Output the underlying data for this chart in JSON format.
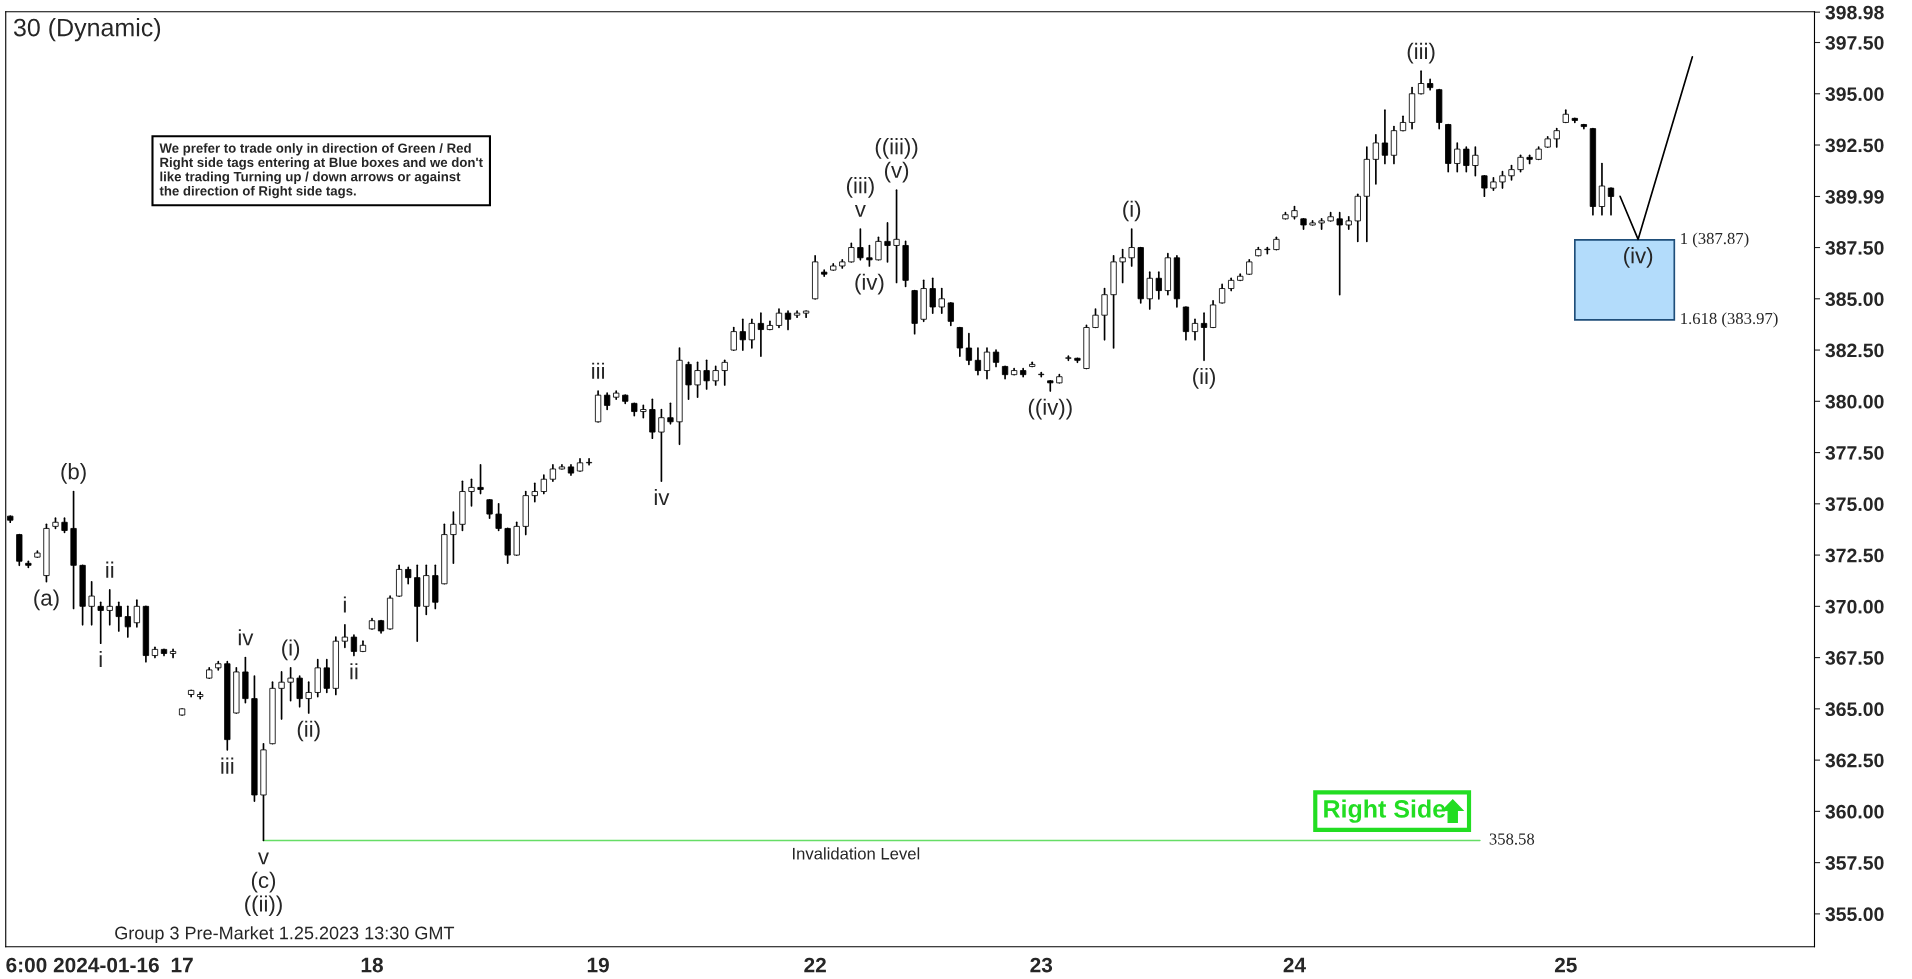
{
  "chart_data": {
    "type": "candlestick",
    "title": "30 (Dynamic)",
    "categories": [
      null,
      null,
      null,
      null,
      null,
      null,
      null,
      null,
      "6:00 2024-01-16",
      null,
      null,
      null,
      null,
      null,
      null,
      null,
      null,
      null,
      null,
      "17",
      null,
      null,
      null,
      null,
      null,
      null,
      null,
      null,
      null,
      null,
      null,
      null,
      null,
      null,
      null,
      null,
      null,
      null,
      null,
      null,
      "18",
      null,
      null,
      null,
      null,
      null,
      null,
      null,
      null,
      null,
      null,
      null,
      null,
      null,
      null,
      null,
      null,
      null,
      null,
      null,
      null,
      null,
      null,
      null,
      null,
      "19",
      null,
      null,
      null,
      null,
      null,
      null,
      null,
      null,
      null,
      null,
      null,
      null,
      null,
      null,
      null,
      null,
      null,
      null,
      null,
      null,
      null,
      null,
      null,
      "22",
      null,
      null,
      null,
      null,
      null,
      null,
      null,
      null,
      null,
      null,
      null,
      null,
      null,
      null,
      null,
      null,
      null,
      null,
      null,
      null,
      null,
      null,
      null,
      null,
      "23",
      null,
      null,
      null,
      null,
      null,
      null,
      null,
      null,
      null,
      null,
      null,
      null,
      null,
      null,
      null,
      null,
      null,
      null,
      null,
      null,
      null,
      null,
      null,
      null,
      null,
      null,
      null,
      "24",
      null,
      null,
      null,
      null,
      null,
      null,
      null,
      null,
      null,
      null,
      null,
      null,
      null,
      null,
      null,
      null,
      null,
      null,
      null,
      null,
      null,
      null,
      null,
      null,
      null,
      null,
      null,
      null,
      null,
      "25",
      null,
      null,
      null,
      null,
      null,
      null,
      null,
      null,
      null,
      null,
      null,
      null,
      null,
      null,
      null,
      null,
      null,
      null,
      null,
      null,
      null,
      null,
      null,
      null,
      null,
      null,
      null
    ],
    "ohlc": [
      [
        374.4,
        374.4,
        374.1,
        374.2
      ],
      [
        373.5,
        373.5,
        372.0,
        372.2
      ],
      [
        372.1,
        372.2,
        371.9,
        372.0
      ],
      [
        372.4,
        372.7,
        372.4,
        372.6
      ],
      [
        371.5,
        374.0,
        371.2,
        373.8
      ],
      [
        373.9,
        374.3,
        373.8,
        374.1
      ],
      [
        374.1,
        374.3,
        373.6,
        373.7
      ],
      [
        373.8,
        375.6,
        369.9,
        372.0
      ],
      [
        372.0,
        372.0,
        369.1,
        370.0
      ],
      [
        370.0,
        371.2,
        369.1,
        370.5
      ],
      [
        370.0,
        370.2,
        368.2,
        369.8
      ],
      [
        369.8,
        370.8,
        369.1,
        370.0
      ],
      [
        370.0,
        370.2,
        368.8,
        369.5
      ],
      [
        369.5,
        370.0,
        368.5,
        369.0
      ],
      [
        369.2,
        370.3,
        369.0,
        370.0
      ],
      [
        370.0,
        370.0,
        367.3,
        367.6
      ],
      [
        367.6,
        368.0,
        367.5,
        367.9
      ],
      [
        367.9,
        367.9,
        367.6,
        367.7
      ],
      [
        367.7,
        367.9,
        367.5,
        367.8
      ],
      [
        364.7,
        365.0,
        364.7,
        365.0
      ],
      [
        365.7,
        365.9,
        365.6,
        365.9
      ],
      [
        365.6,
        365.8,
        365.5,
        365.7
      ],
      [
        366.5,
        367.0,
        366.5,
        366.9
      ],
      [
        367.0,
        367.3,
        366.9,
        367.2
      ],
      [
        367.2,
        367.3,
        363.0,
        363.5
      ],
      [
        364.8,
        367.0,
        364.8,
        366.8
      ],
      [
        366.8,
        367.5,
        365.3,
        365.5
      ],
      [
        365.5,
        366.6,
        360.5,
        360.8
      ],
      [
        360.8,
        363.3,
        358.58,
        363.0
      ],
      [
        363.3,
        366.3,
        363.3,
        366.0
      ],
      [
        366.0,
        366.8,
        364.5,
        366.3
      ],
      [
        366.3,
        367.0,
        365.4,
        366.5
      ],
      [
        366.5,
        366.6,
        365.1,
        365.5
      ],
      [
        365.5,
        366.3,
        364.8,
        365.8
      ],
      [
        365.8,
        367.4,
        365.6,
        367.0
      ],
      [
        367.0,
        367.4,
        365.8,
        366.0
      ],
      [
        366.0,
        368.5,
        365.7,
        368.3
      ],
      [
        368.3,
        369.1,
        368.0,
        368.5
      ],
      [
        368.5,
        368.6,
        367.6,
        367.8
      ],
      [
        367.8,
        368.3,
        367.8,
        368.1
      ],
      [
        368.9,
        369.4,
        368.9,
        369.3
      ],
      [
        369.3,
        369.3,
        368.7,
        368.8
      ],
      [
        368.9,
        370.5,
        368.9,
        370.4
      ],
      [
        370.5,
        372.0,
        370.5,
        371.8
      ],
      [
        371.8,
        371.9,
        371.1,
        371.4
      ],
      [
        371.4,
        372.0,
        368.3,
        370.0
      ],
      [
        370.0,
        372.0,
        369.6,
        371.5
      ],
      [
        371.5,
        372.0,
        369.9,
        370.2
      ],
      [
        371.1,
        374.0,
        371.1,
        373.5
      ],
      [
        373.5,
        374.6,
        372.1,
        374.0
      ],
      [
        374.0,
        376.1,
        373.7,
        375.6
      ],
      [
        375.6,
        376.2,
        374.9,
        375.8
      ],
      [
        375.8,
        376.9,
        375.5,
        375.7
      ],
      [
        375.2,
        375.2,
        374.3,
        374.5
      ],
      [
        374.5,
        375.0,
        373.7,
        373.8
      ],
      [
        373.8,
        373.8,
        372.1,
        372.5
      ],
      [
        372.5,
        374.1,
        372.5,
        373.9
      ],
      [
        373.9,
        375.6,
        373.5,
        375.4
      ],
      [
        375.4,
        376.0,
        375.1,
        375.6
      ],
      [
        375.6,
        376.4,
        375.5,
        376.2
      ],
      [
        376.2,
        376.9,
        376.1,
        376.7
      ],
      [
        376.7,
        376.9,
        376.7,
        376.8
      ],
      [
        376.8,
        376.9,
        376.4,
        376.5
      ],
      [
        376.6,
        377.2,
        376.6,
        377.0
      ],
      [
        377.0,
        377.2,
        376.9,
        377.0
      ],
      [
        379.0,
        380.5,
        379.0,
        380.3
      ],
      [
        380.3,
        380.4,
        379.6,
        379.8
      ],
      [
        380.2,
        380.5,
        380.1,
        380.4
      ],
      [
        380.3,
        380.3,
        379.9,
        380.0
      ],
      [
        379.9,
        379.9,
        379.3,
        379.5
      ],
      [
        379.5,
        379.8,
        379.2,
        379.6
      ],
      [
        379.6,
        380.1,
        378.2,
        378.5
      ],
      [
        378.5,
        379.6,
        376.1,
        379.2
      ],
      [
        379.2,
        379.9,
        378.9,
        379.0
      ],
      [
        379.0,
        382.6,
        377.9,
        382.0
      ],
      [
        381.8,
        381.9,
        380.1,
        380.8
      ],
      [
        380.8,
        381.9,
        380.2,
        381.5
      ],
      [
        381.5,
        382.0,
        380.6,
        381.0
      ],
      [
        381.0,
        381.7,
        380.8,
        381.5
      ],
      [
        381.5,
        382.0,
        380.8,
        381.9
      ],
      [
        382.5,
        383.6,
        382.5,
        383.4
      ],
      [
        383.4,
        384.0,
        382.5,
        383.0
      ],
      [
        383.0,
        384.0,
        382.6,
        383.8
      ],
      [
        383.8,
        384.3,
        382.2,
        383.5
      ],
      [
        383.5,
        383.9,
        383.5,
        383.7
      ],
      [
        383.7,
        384.5,
        383.6,
        384.3
      ],
      [
        384.3,
        384.4,
        383.5,
        384.0
      ],
      [
        384.2,
        384.4,
        384.1,
        384.3
      ],
      [
        384.3,
        384.4,
        384.1,
        384.4
      ],
      [
        385.0,
        387.1,
        385.0,
        386.8
      ],
      [
        386.3,
        386.4,
        386.1,
        386.2
      ],
      [
        386.4,
        386.7,
        386.4,
        386.6
      ],
      [
        386.6,
        386.9,
        386.5,
        386.8
      ],
      [
        386.8,
        387.7,
        386.8,
        387.5
      ],
      [
        387.5,
        388.4,
        386.9,
        387.0
      ],
      [
        387.0,
        387.6,
        386.6,
        386.9
      ],
      [
        386.9,
        388.0,
        386.9,
        387.8
      ],
      [
        387.8,
        388.7,
        386.8,
        387.6
      ],
      [
        387.6,
        390.3,
        385.8,
        387.9
      ],
      [
        387.6,
        387.8,
        385.6,
        385.9
      ],
      [
        385.4,
        385.4,
        383.3,
        383.8
      ],
      [
        384.0,
        385.9,
        383.9,
        385.5
      ],
      [
        385.5,
        386.0,
        384.3,
        384.6
      ],
      [
        384.6,
        385.5,
        384.3,
        385.0
      ],
      [
        384.8,
        384.8,
        383.7,
        383.9
      ],
      [
        383.6,
        383.6,
        382.2,
        382.6
      ],
      [
        382.6,
        383.3,
        381.8,
        382.0
      ],
      [
        382.0,
        382.6,
        381.3,
        381.5
      ],
      [
        381.5,
        382.6,
        381.1,
        382.4
      ],
      [
        382.4,
        382.5,
        381.7,
        381.9
      ],
      [
        381.7,
        381.7,
        381.1,
        381.3
      ],
      [
        381.3,
        381.6,
        381.3,
        381.5
      ],
      [
        381.5,
        381.6,
        381.2,
        381.3
      ],
      [
        381.7,
        381.9,
        381.7,
        381.8
      ],
      [
        381.3,
        381.4,
        381.2,
        381.3
      ],
      [
        381.0,
        381.0,
        380.5,
        380.9
      ],
      [
        380.9,
        381.3,
        380.9,
        381.2
      ],
      [
        382.1,
        382.2,
        382.0,
        382.1
      ],
      [
        382.1,
        382.1,
        381.9,
        382.0
      ],
      [
        381.6,
        383.7,
        381.6,
        383.6
      ],
      [
        383.6,
        384.5,
        383.6,
        384.2
      ],
      [
        384.2,
        385.5,
        383.0,
        385.2
      ],
      [
        385.2,
        387.1,
        382.6,
        386.8
      ],
      [
        386.8,
        387.4,
        385.8,
        387.0
      ],
      [
        387.0,
        388.4,
        386.6,
        387.5
      ],
      [
        387.5,
        387.5,
        384.8,
        385.0
      ],
      [
        385.0,
        386.3,
        384.5,
        386.0
      ],
      [
        386.0,
        386.3,
        385.0,
        385.4
      ],
      [
        385.4,
        387.2,
        385.2,
        387.0
      ],
      [
        387.0,
        387.1,
        384.6,
        385.0
      ],
      [
        384.6,
        384.6,
        383.0,
        383.4
      ],
      [
        383.4,
        384.0,
        383.0,
        383.8
      ],
      [
        383.8,
        384.3,
        382.0,
        383.6
      ],
      [
        383.6,
        384.9,
        383.6,
        384.7
      ],
      [
        384.8,
        385.7,
        384.8,
        385.5
      ],
      [
        385.5,
        386.0,
        385.4,
        385.9
      ],
      [
        385.9,
        386.2,
        385.9,
        386.1
      ],
      [
        386.2,
        386.9,
        386.2,
        386.8
      ],
      [
        387.1,
        387.5,
        387.1,
        387.4
      ],
      [
        387.4,
        387.5,
        387.2,
        387.4
      ],
      [
        387.4,
        388.0,
        387.4,
        387.9
      ],
      [
        388.9,
        389.2,
        388.9,
        389.1
      ],
      [
        389.0,
        389.5,
        388.9,
        389.3
      ],
      [
        388.9,
        388.9,
        388.4,
        388.6
      ],
      [
        388.6,
        388.8,
        388.6,
        388.7
      ],
      [
        388.7,
        388.9,
        388.4,
        388.8
      ],
      [
        388.8,
        389.2,
        388.8,
        389.0
      ],
      [
        388.9,
        389.2,
        385.2,
        388.6
      ],
      [
        388.6,
        389.0,
        388.4,
        388.8
      ],
      [
        388.8,
        390.1,
        387.8,
        390.0
      ],
      [
        390.0,
        392.4,
        387.8,
        391.8
      ],
      [
        391.8,
        393.0,
        390.6,
        392.6
      ],
      [
        392.6,
        394.2,
        391.6,
        392.0
      ],
      [
        392.0,
        393.4,
        391.6,
        393.2
      ],
      [
        393.2,
        393.9,
        393.2,
        393.6
      ],
      [
        393.6,
        395.3,
        393.3,
        395.0
      ],
      [
        395.0,
        396.1,
        395.0,
        395.5
      ],
      [
        395.5,
        395.7,
        395.2,
        395.3
      ],
      [
        395.2,
        395.2,
        393.3,
        393.6
      ],
      [
        393.5,
        393.5,
        391.2,
        391.6
      ],
      [
        391.6,
        392.6,
        391.2,
        392.3
      ],
      [
        392.3,
        392.4,
        391.2,
        391.5
      ],
      [
        391.5,
        392.4,
        391.0,
        392.0
      ],
      [
        391.0,
        391.0,
        390.0,
        390.4
      ],
      [
        390.4,
        390.9,
        390.3,
        390.7
      ],
      [
        390.7,
        391.2,
        390.4,
        391.0
      ],
      [
        391.0,
        391.5,
        390.8,
        391.3
      ],
      [
        391.3,
        392.0,
        391.2,
        391.9
      ],
      [
        391.9,
        392.0,
        391.6,
        391.8
      ],
      [
        391.8,
        392.4,
        391.8,
        392.3
      ],
      [
        392.4,
        392.9,
        392.4,
        392.8
      ],
      [
        392.8,
        393.3,
        392.4,
        393.2
      ],
      [
        393.6,
        394.2,
        393.6,
        394.0
      ],
      [
        393.8,
        393.8,
        393.6,
        393.7
      ],
      [
        393.5,
        393.5,
        393.3,
        393.4
      ],
      [
        393.3,
        393.3,
        389.1,
        389.5
      ],
      [
        389.5,
        391.6,
        389.1,
        390.5
      ],
      [
        390.4,
        390.4,
        389.1,
        389.99
      ],
      null,
      null,
      null,
      null,
      null,
      null,
      null,
      null,
      null,
      null,
      null,
      null,
      null,
      null,
      null,
      null,
      null,
      null,
      null,
      null,
      null,
      null
    ],
    "series": [
      {
        "type": "line",
        "color": "#000000",
        "values": [
          null,
          null,
          null,
          null,
          null,
          null,
          null,
          null,
          null,
          null,
          null,
          null,
          null,
          null,
          null,
          null,
          null,
          null,
          null,
          null,
          null,
          null,
          null,
          null,
          null,
          null,
          null,
          null,
          null,
          null,
          null,
          null,
          null,
          null,
          null,
          null,
          null,
          null,
          null,
          null,
          null,
          null,
          null,
          null,
          null,
          null,
          null,
          null,
          null,
          null,
          null,
          null,
          null,
          null,
          null,
          null,
          null,
          null,
          null,
          null,
          null,
          null,
          null,
          null,
          null,
          null,
          null,
          null,
          null,
          null,
          null,
          null,
          null,
          null,
          null,
          null,
          null,
          null,
          null,
          null,
          null,
          null,
          null,
          null,
          null,
          null,
          null,
          null,
          null,
          null,
          null,
          null,
          null,
          null,
          null,
          null,
          null,
          null,
          null,
          null,
          null,
          null,
          null,
          null,
          null,
          null,
          null,
          null,
          null,
          null,
          null,
          null,
          null,
          null,
          null,
          null,
          null,
          null,
          null,
          null,
          null,
          null,
          null,
          null,
          null,
          null,
          null,
          null,
          null,
          null,
          null,
          null,
          null,
          null,
          null,
          null,
          null,
          null,
          null,
          null,
          null,
          null,
          null,
          null,
          null,
          null,
          null,
          null,
          null,
          null,
          null,
          null,
          null,
          null,
          null,
          null,
          null,
          null,
          null,
          null,
          null,
          null,
          null,
          null,
          null,
          null,
          null,
          null,
          null,
          null,
          null,
          null,
          null,
          null,
          null,
          null,
          null,
          null,
          390.0,
          null,
          387.9,
          null,
          null,
          null,
          null,
          null,
          396.8,
          null,
          null,
          null,
          null,
          null,
          null,
          null,
          null,
          null,
          null,
          null,
          null,
          null
        ]
      }
    ],
    "ylim": [
      353.4,
      399.0
    ],
    "yticks": [
      {
        "value": 355,
        "label": "355.00"
      },
      {
        "value": 357.5,
        "label": "357.50"
      },
      {
        "value": 360,
        "label": "360.00"
      },
      {
        "value": 362.5,
        "label": "362.50"
      },
      {
        "value": 365,
        "label": "365.00"
      },
      {
        "value": 367.5,
        "label": "367.50"
      },
      {
        "value": 370,
        "label": "370.00"
      },
      {
        "value": 372.5,
        "label": "372.50"
      },
      {
        "value": 375,
        "label": "375.00"
      },
      {
        "value": 377.5,
        "label": "377.50"
      },
      {
        "value": 380,
        "label": "380.00"
      },
      {
        "value": 382.5,
        "label": "382.50"
      },
      {
        "value": 385,
        "label": "385.00"
      },
      {
        "value": 387.5,
        "label": "387.50"
      },
      {
        "value": 389.99,
        "label": "389.99"
      },
      {
        "value": 392.5,
        "label": "392.50"
      },
      {
        "value": 395,
        "label": "395.00"
      },
      {
        "value": 397.5,
        "label": "397.50"
      },
      {
        "value": 398.98,
        "label": "398.98"
      }
    ],
    "ref_lines": [
      {
        "axis": "y",
        "value": 358.58,
        "label": "358.58",
        "color": "#66dd66"
      }
    ],
    "bands": [
      {
        "axis": "y",
        "from": 383.97,
        "to": 387.87,
        "color": "#b3dcfb"
      }
    ],
    "annotations": [
      "1 (387.87)",
      "1.618 (383.97)",
      "Invalidation Level",
      "(b)",
      "(a)",
      "ii",
      "i",
      "iv",
      "iii",
      "v",
      "(c)",
      "((ii))",
      "(i)",
      "(ii)",
      "i",
      "ii",
      "iii",
      "iv",
      "(v)",
      "((iii))",
      "v",
      "(iii)",
      "(iv)",
      "((iv))",
      "(i)",
      "(ii)",
      "(iii)",
      "(iv)",
      "We prefer to trade only in direction of Green / Red\nRight side tags entering at Blue boxes and we don't\nlike trading Turning up / down arrows or against\nthe direction of Right side tags.",
      "Right Side",
      "Group 3 Pre-Market 1.25.2023 13:30 GMT"
    ],
    "grid": false
  }
}
